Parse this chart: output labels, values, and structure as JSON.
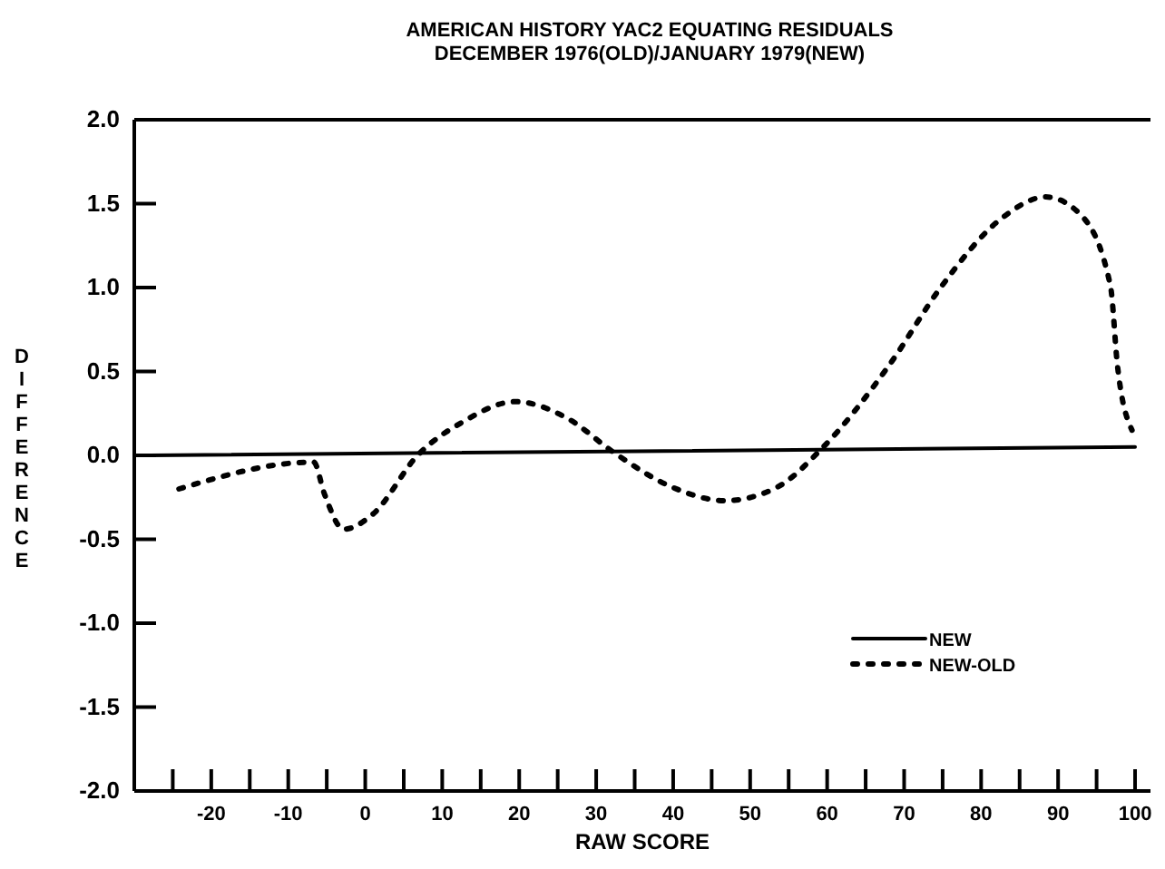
{
  "chart_data": {
    "type": "line",
    "title": "AMERICAN HISTORY YAC2 EQUATING RESIDUALS",
    "subtitle": "DECEMBER 1976(OLD)/JANUARY 1979(NEW)",
    "xlabel": "RAW SCORE",
    "ylabel": "DIFFERENCE",
    "xlim": [
      -30,
      102
    ],
    "ylim": [
      -2,
      2
    ],
    "xticks": [
      {
        "value": -25,
        "label": null
      },
      -20,
      {
        "value": -15,
        "label": null
      },
      -10,
      {
        "value": -5,
        "label": null
      },
      0,
      {
        "value": 5,
        "label": null
      },
      10,
      {
        "value": 15,
        "label": null
      },
      20,
      {
        "value": 25,
        "label": null
      },
      30,
      {
        "value": 35,
        "label": null
      },
      40,
      {
        "value": 45,
        "label": null
      },
      50,
      {
        "value": 55,
        "label": null
      },
      60,
      {
        "value": 65,
        "label": null
      },
      70,
      {
        "value": 75,
        "label": null
      },
      80,
      {
        "value": 85,
        "label": null
      },
      90,
      {
        "value": 95,
        "label": null
      },
      100
    ],
    "yticks": [
      {
        "value": 2,
        "label": "2.0"
      },
      1.5,
      {
        "value": 1,
        "label": "1.0"
      },
      0.5,
      {
        "value": 0,
        "label": "0.0"
      },
      -0.5,
      {
        "value": -1,
        "label": "-1.0"
      },
      -1.5,
      {
        "value": -2,
        "label": "-2.0"
      }
    ],
    "grid": false,
    "legend": "bottom right",
    "marker": "none",
    "series": [
      {
        "name": "NEW",
        "color": "#000000",
        "line_style": "solid",
        "x": [
          -28,
          100
        ],
        "values": [
          0,
          0.05
        ]
      },
      {
        "name": "NEW-OLD",
        "color": "#000000",
        "line_style": "dotted",
        "x": [
          -24.2,
          -6.7,
          -5.3,
          -2.8,
          1,
          6.8,
          12.7,
          19.5,
          26.3,
          32.2,
          39.9,
          46.7,
          53.5,
          59.3,
          68.1,
          74.9,
          82.6,
          88.4,
          92.8,
          96.8,
          97.7,
          99.6
        ],
        "values": [
          -0.2,
          -0.04,
          -0.23,
          -0.44,
          -0.35,
          0,
          0.2,
          0.32,
          0.22,
          0.02,
          -0.19,
          -0.27,
          -0.19,
          0.04,
          0.54,
          1.01,
          1.41,
          1.54,
          1.44,
          1.01,
          0.54,
          0.15
        ]
      }
    ]
  }
}
